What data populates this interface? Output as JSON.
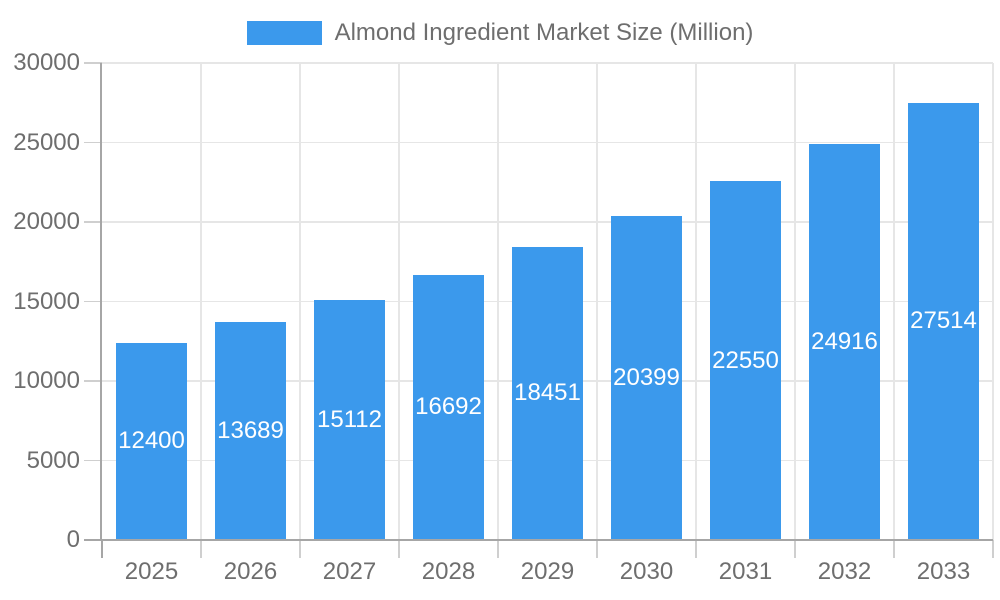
{
  "chart_data": {
    "type": "bar",
    "title": "Almond Ingredient Market Size (Million)",
    "legend_position": "top-center",
    "categories": [
      "2025",
      "2026",
      "2027",
      "2028",
      "2029",
      "2030",
      "2031",
      "2032",
      "2033"
    ],
    "series": [
      {
        "name": "Almond Ingredient Market Size (Million)",
        "values": [
          12400,
          13689,
          15112,
          16692,
          18451,
          20399,
          22550,
          24916,
          27514
        ]
      }
    ],
    "value_labels_inside_bars": true,
    "xlabel": "",
    "ylabel": "",
    "ylim": [
      0,
      30000
    ],
    "ytick_step": 5000,
    "ytick_labels": [
      "0",
      "5000",
      "10000",
      "15000",
      "20000",
      "25000",
      "30000"
    ],
    "grid": true,
    "colors": {
      "bar": "#3B99EC",
      "grid": "#E6E6E6",
      "axis": "#A6A6A6",
      "tick": "#CFCFCF",
      "text": "#6E6E6E",
      "value_text": "#FFFFFF",
      "background": "#FFFFFF"
    }
  }
}
